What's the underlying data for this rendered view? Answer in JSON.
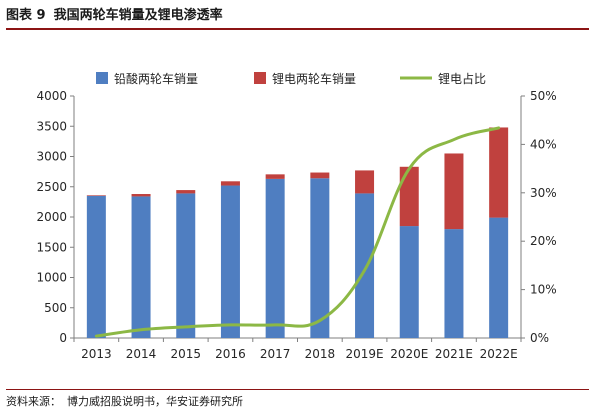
{
  "figure": {
    "label": "图表 9",
    "title": "我国两轮车销量及锂电渗透率",
    "source_label": "资料来源：",
    "source_text": "博力威招股说明书，华安证券研究所"
  },
  "colors": {
    "lead_acid": "#4f7ec1",
    "lithium": "#c0413e",
    "share": "#8cb845",
    "axis": "#7f7f7f",
    "title_rule": "#8c1414"
  },
  "chart_data": {
    "type": "bar",
    "stacked": true,
    "categories": [
      "2013",
      "2014",
      "2015",
      "2016",
      "2017",
      "2018",
      "2019E",
      "2020E",
      "2021E",
      "2022E"
    ],
    "series": [
      {
        "name": "铅酸两轮车销量",
        "kind": "bar",
        "axis": "left",
        "values": [
          2350,
          2340,
          2390,
          2520,
          2630,
          2640,
          2390,
          1850,
          1800,
          1990
        ]
      },
      {
        "name": "锂电两轮车销量",
        "kind": "bar",
        "axis": "left",
        "values": [
          10,
          40,
          55,
          70,
          75,
          95,
          380,
          980,
          1250,
          1490
        ]
      },
      {
        "name": "锂电占比",
        "kind": "line",
        "axis": "right",
        "values": [
          0.004,
          0.017,
          0.023,
          0.027,
          0.027,
          0.036,
          0.14,
          0.35,
          0.41,
          0.434
        ]
      }
    ],
    "y_left": {
      "min": 0,
      "max": 4000,
      "step": 500,
      "ticks": [
        "0",
        "500",
        "1000",
        "1500",
        "2000",
        "2500",
        "3000",
        "3500",
        "4000"
      ]
    },
    "y_right": {
      "min": 0,
      "max": 0.5,
      "step": 0.1,
      "ticks": [
        "0%",
        "10%",
        "20%",
        "30%",
        "40%",
        "50%"
      ]
    },
    "grid": false,
    "legend_position": "top"
  }
}
